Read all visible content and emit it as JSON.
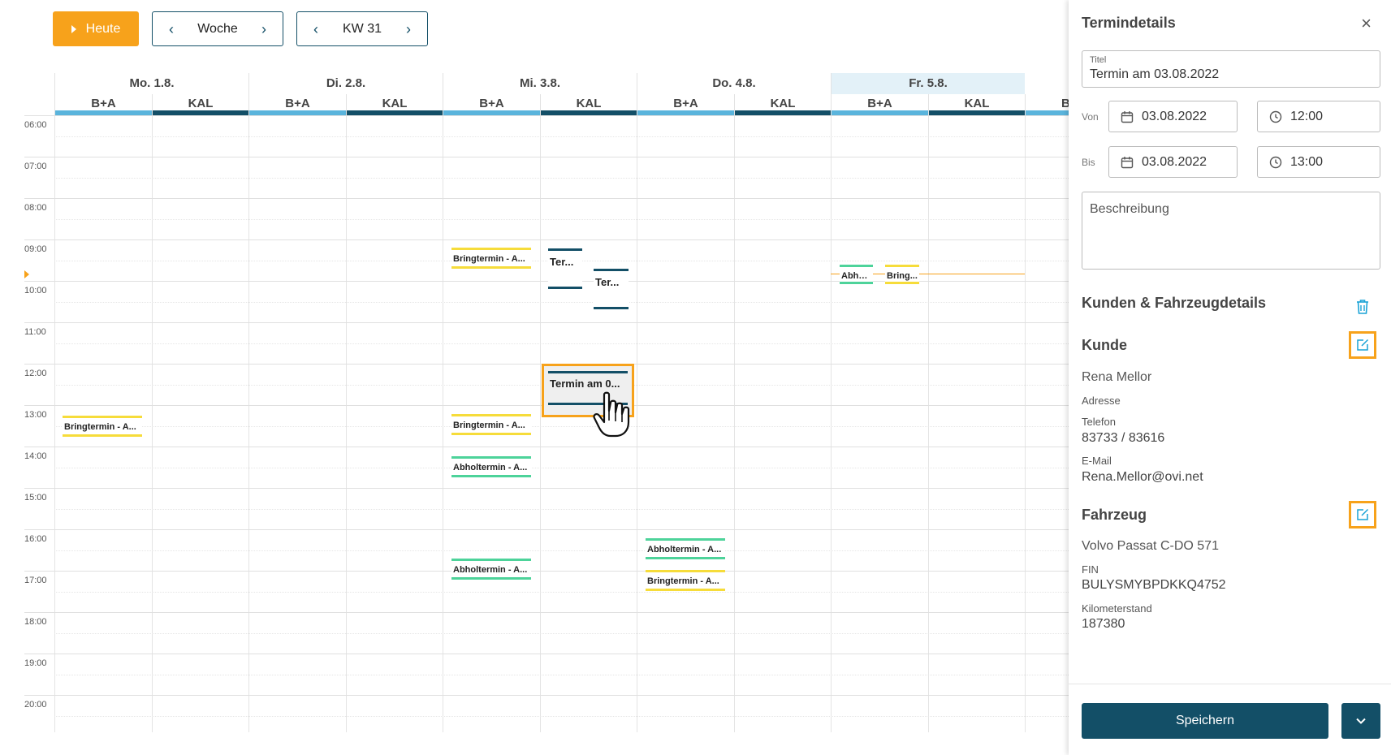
{
  "toolbar": {
    "today_label": "Heute",
    "week_nav": {
      "label": "Woche"
    },
    "kw_nav": {
      "label": "KW 31"
    }
  },
  "calendar": {
    "days": [
      {
        "label": "Mo. 1.8."
      },
      {
        "label": "Di. 2.8."
      },
      {
        "label": "Mi. 3.8."
      },
      {
        "label": "Do. 4.8."
      },
      {
        "label": "Fr. 5.8.",
        "today": true
      }
    ],
    "resource_columns": [
      "B+A",
      "KAL"
    ],
    "partial_column_label": "B",
    "times": [
      "06:00",
      "07:00",
      "08:00",
      "09:00",
      "10:00",
      "11:00",
      "12:00",
      "13:00",
      "14:00",
      "15:00",
      "16:00",
      "17:00",
      "18:00",
      "19:00",
      "20:00"
    ],
    "colors": {
      "ba": "#5ab4dc",
      "kal": "#134f67",
      "bring": "#f6dc3a",
      "abhol": "#4dd39a",
      "accent": "#f7a21b"
    },
    "events": [
      {
        "text": "Bringtermin - A...",
        "kind": "yellow"
      },
      {
        "text": "Ter...",
        "kind": "navy"
      },
      {
        "text": "Ter...",
        "kind": "navy"
      },
      {
        "text": "Abho...",
        "kind": "green"
      },
      {
        "text": "Bring...",
        "kind": "yellow"
      },
      {
        "text": "Termin am 0...",
        "kind": "selected"
      },
      {
        "text": "Bringtermin - A...",
        "kind": "yellow"
      },
      {
        "text": "Bringtermin - A...",
        "kind": "yellow"
      },
      {
        "text": "Abholtermin - A...",
        "kind": "green"
      },
      {
        "text": "Abholtermin - A...",
        "kind": "green"
      },
      {
        "text": "Abholtermin - A...",
        "kind": "green"
      },
      {
        "text": "Bringtermin - A...",
        "kind": "yellow"
      }
    ]
  },
  "panel": {
    "title": "Termindetails",
    "titel_field": {
      "label": "Titel",
      "value": "Termin am 03.08.2022"
    },
    "von": {
      "label": "Von",
      "date": "03.08.2022",
      "time": "12:00"
    },
    "bis": {
      "label": "Bis",
      "date": "03.08.2022",
      "time": "13:00"
    },
    "beschreibung_placeholder": "Beschreibung",
    "section_title": "Kunden & Fahrzeugdetails",
    "kunde": {
      "heading": "Kunde",
      "name": "Rena Mellor",
      "adresse_label": "Adresse",
      "telefon_label": "Telefon",
      "telefon": "83733 / 83616",
      "email_label": "E-Mail",
      "email": "Rena.Mellor@ovi.net"
    },
    "fahrzeug": {
      "heading": "Fahrzeug",
      "name": "Volvo Passat C-DO 571",
      "fin_label": "FIN",
      "fin": "BULYSMYBPDKKQ4752",
      "km_label": "Kilometerstand",
      "km": "187380"
    },
    "save_label": "Speichern"
  }
}
